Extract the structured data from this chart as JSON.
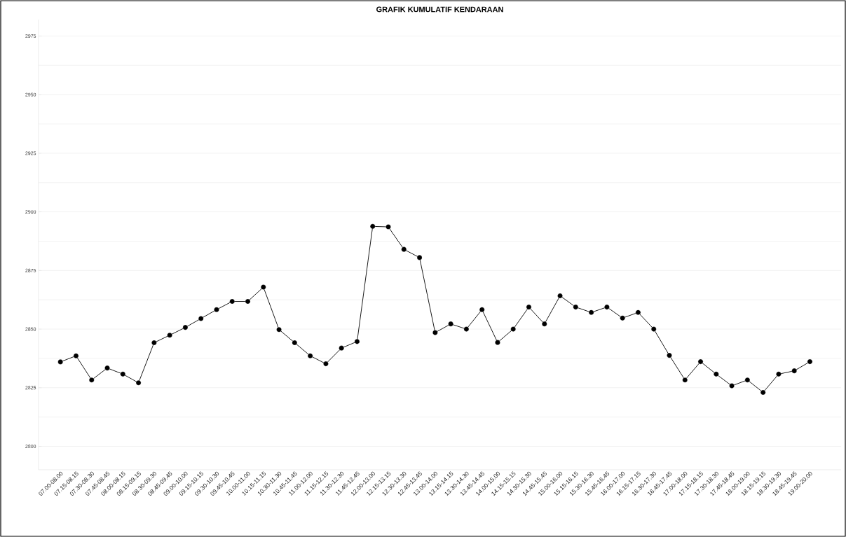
{
  "chart_data": {
    "type": "line",
    "title": "GRAFIK KUMULATIF KENDARAAN",
    "categories": [
      "07.00-08.00",
      "07.15-08.15",
      "07.30-08.30",
      "07.45-08.45",
      "08.00-08.15",
      "08.15-09.15",
      "08.30-09.30",
      "08.45-09.45",
      "09.00-10.00",
      "09.15-10.15",
      "09.30-10.30",
      "09.45-10.45",
      "10.00-11.00",
      "10.15-11.15",
      "10.30-11.30",
      "10.45-11.45",
      "11.00-12.00",
      "11.15-12.15",
      "11.30-12.30",
      "11.45-12.45",
      "12.00-13.00",
      "12.15-13.15",
      "12.30-13.30",
      "12.45-13.45",
      "13.00-14.00",
      "13.15-14.15",
      "13.30-14.30",
      "13.45-14.45",
      "14.00-15.00",
      "14.15-15.15",
      "14.30-15.30",
      "14.45-15.45",
      "15.00-16.00",
      "15.15-16.15",
      "15.30-16.30",
      "15.45-16.45",
      "16.00-17.00",
      "16.15-17.15",
      "16.30-17.30",
      "16.45-17.45",
      "17.00-18.00",
      "17.15-18.15",
      "17.30-18.30",
      "17.45-18.45",
      "18.00-19.00",
      "18.15-19.15",
      "18.30-19.30",
      "18.45-19.45",
      "19.00-20.00"
    ],
    "series": [
      {
        "color": "#000000",
        "values": [
          2836,
          2838.6,
          2828.3,
          2833.4,
          2830.8,
          2827.1,
          2844.2,
          2847.4,
          2850.7,
          2854.5,
          2858.3,
          2861.8,
          2861.8,
          2867.9,
          2849.8,
          2844.2,
          2838.6,
          2835.2,
          2841.9,
          2844.7,
          2893.8,
          2893.6,
          2884,
          2880.5,
          2848.5,
          2852.2,
          2850,
          2858.3,
          2844.3,
          2850,
          2859.4,
          2852.2,
          2864.2,
          2859.4,
          2857.1,
          2859.4,
          2854.7,
          2857.1,
          2850,
          2838.8,
          2828.3,
          2836.1,
          2830.8,
          2825.8,
          2828.3,
          2823,
          2830.8,
          2832.2,
          2836.1
        ]
      }
    ],
    "ylim": [
      2790,
      2982
    ],
    "yticks": [
      2800,
      2825,
      2850,
      2875,
      2900,
      2925,
      2950,
      2975
    ],
    "grid": "y",
    "marker": "circle",
    "line_style": "solid"
  }
}
